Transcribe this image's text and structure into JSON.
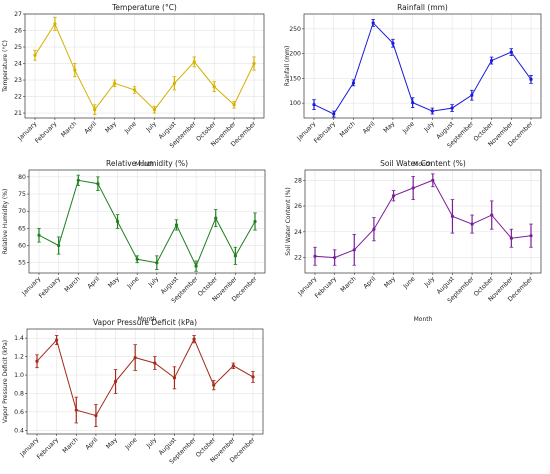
{
  "chart_data": [
    {
      "type": "line",
      "title": "Temperature (°C)",
      "xlabel": "Month",
      "ylabel": "Temperature (°C)",
      "color": "#d4b000",
      "categories": [
        "January",
        "February",
        "March",
        "April",
        "May",
        "June",
        "July",
        "August",
        "September",
        "October",
        "November",
        "December"
      ],
      "values": [
        24.5,
        26.4,
        23.6,
        21.2,
        22.8,
        22.4,
        21.2,
        22.8,
        24.1,
        22.6,
        21.5,
        24.0
      ],
      "errors": [
        0.3,
        0.4,
        0.4,
        0.3,
        0.2,
        0.2,
        0.2,
        0.4,
        0.3,
        0.3,
        0.2,
        0.4
      ],
      "ylim": [
        20.7,
        27.0
      ],
      "yticks": [
        21,
        22,
        23,
        24,
        25,
        26,
        27
      ],
      "grid": true
    },
    {
      "type": "line",
      "title": "Rainfall (mm)",
      "xlabel": "Month",
      "ylabel": "Rainfall (mm)",
      "color": "#1a1adb",
      "categories": [
        "January",
        "February",
        "March",
        "April",
        "May",
        "June",
        "July",
        "August",
        "September",
        "October",
        "November",
        "December"
      ],
      "values": [
        97,
        78,
        141,
        262,
        221,
        101,
        84,
        90,
        116,
        186,
        203,
        148
      ],
      "errors": [
        10,
        6,
        6,
        7,
        8,
        10,
        6,
        7,
        10,
        7,
        7,
        8
      ],
      "ylim": [
        70,
        280
      ],
      "yticks": [
        100,
        150,
        200,
        250
      ],
      "grid": true
    },
    {
      "type": "line",
      "title": "Relative Humidity (%)",
      "xlabel": "Month",
      "ylabel": "Relative Humidity (%)",
      "color": "#1f7f1f",
      "categories": [
        "January",
        "February",
        "March",
        "April",
        "May",
        "June",
        "July",
        "August",
        "September",
        "October",
        "November",
        "December"
      ],
      "values": [
        63,
        60,
        79,
        78,
        67,
        56,
        55,
        66,
        54,
        68,
        57,
        67
      ],
      "errors": [
        2,
        2.5,
        1.5,
        2,
        2,
        1,
        2,
        1.5,
        1.5,
        2.5,
        2.5,
        2.5
      ],
      "ylim": [
        52,
        82
      ],
      "yticks": [
        55,
        60,
        65,
        70,
        75,
        80
      ],
      "grid": true
    },
    {
      "type": "line",
      "title": "Soil Water Content (%)",
      "xlabel": "Month",
      "ylabel": "Soil Water Content (%)",
      "color": "#7a1f9a",
      "categories": [
        "January",
        "February",
        "March",
        "April",
        "May",
        "June",
        "July",
        "August",
        "September",
        "October",
        "November",
        "December"
      ],
      "values": [
        22.1,
        22.0,
        22.6,
        24.2,
        26.8,
        27.4,
        28.0,
        25.2,
        24.6,
        25.3,
        23.5,
        23.7
      ],
      "errors": [
        0.7,
        0.6,
        1.2,
        0.9,
        0.4,
        0.9,
        0.5,
        1.3,
        0.7,
        1.1,
        0.7,
        0.9
      ],
      "ylim": [
        20.8,
        28.8
      ],
      "yticks": [
        22,
        24,
        26,
        28
      ],
      "grid": true
    },
    {
      "type": "line",
      "title": "Vapor Pressure Deficit (kPa)",
      "xlabel": "Month",
      "ylabel": "Vapor Pressure Deficit (kPa)",
      "color": "#a52a1a",
      "categories": [
        "January",
        "February",
        "March",
        "April",
        "May",
        "June",
        "July",
        "August",
        "September",
        "October",
        "November",
        "December"
      ],
      "values": [
        1.15,
        1.38,
        0.62,
        0.56,
        0.93,
        1.19,
        1.13,
        0.97,
        1.39,
        0.89,
        1.1,
        0.98
      ],
      "errors": [
        0.07,
        0.05,
        0.14,
        0.12,
        0.13,
        0.14,
        0.07,
        0.12,
        0.04,
        0.05,
        0.03,
        0.06
      ],
      "ylim": [
        0.36,
        1.5
      ],
      "yticks": [
        0.4,
        0.6,
        0.8,
        1.0,
        1.2,
        1.4
      ],
      "grid": true
    }
  ]
}
